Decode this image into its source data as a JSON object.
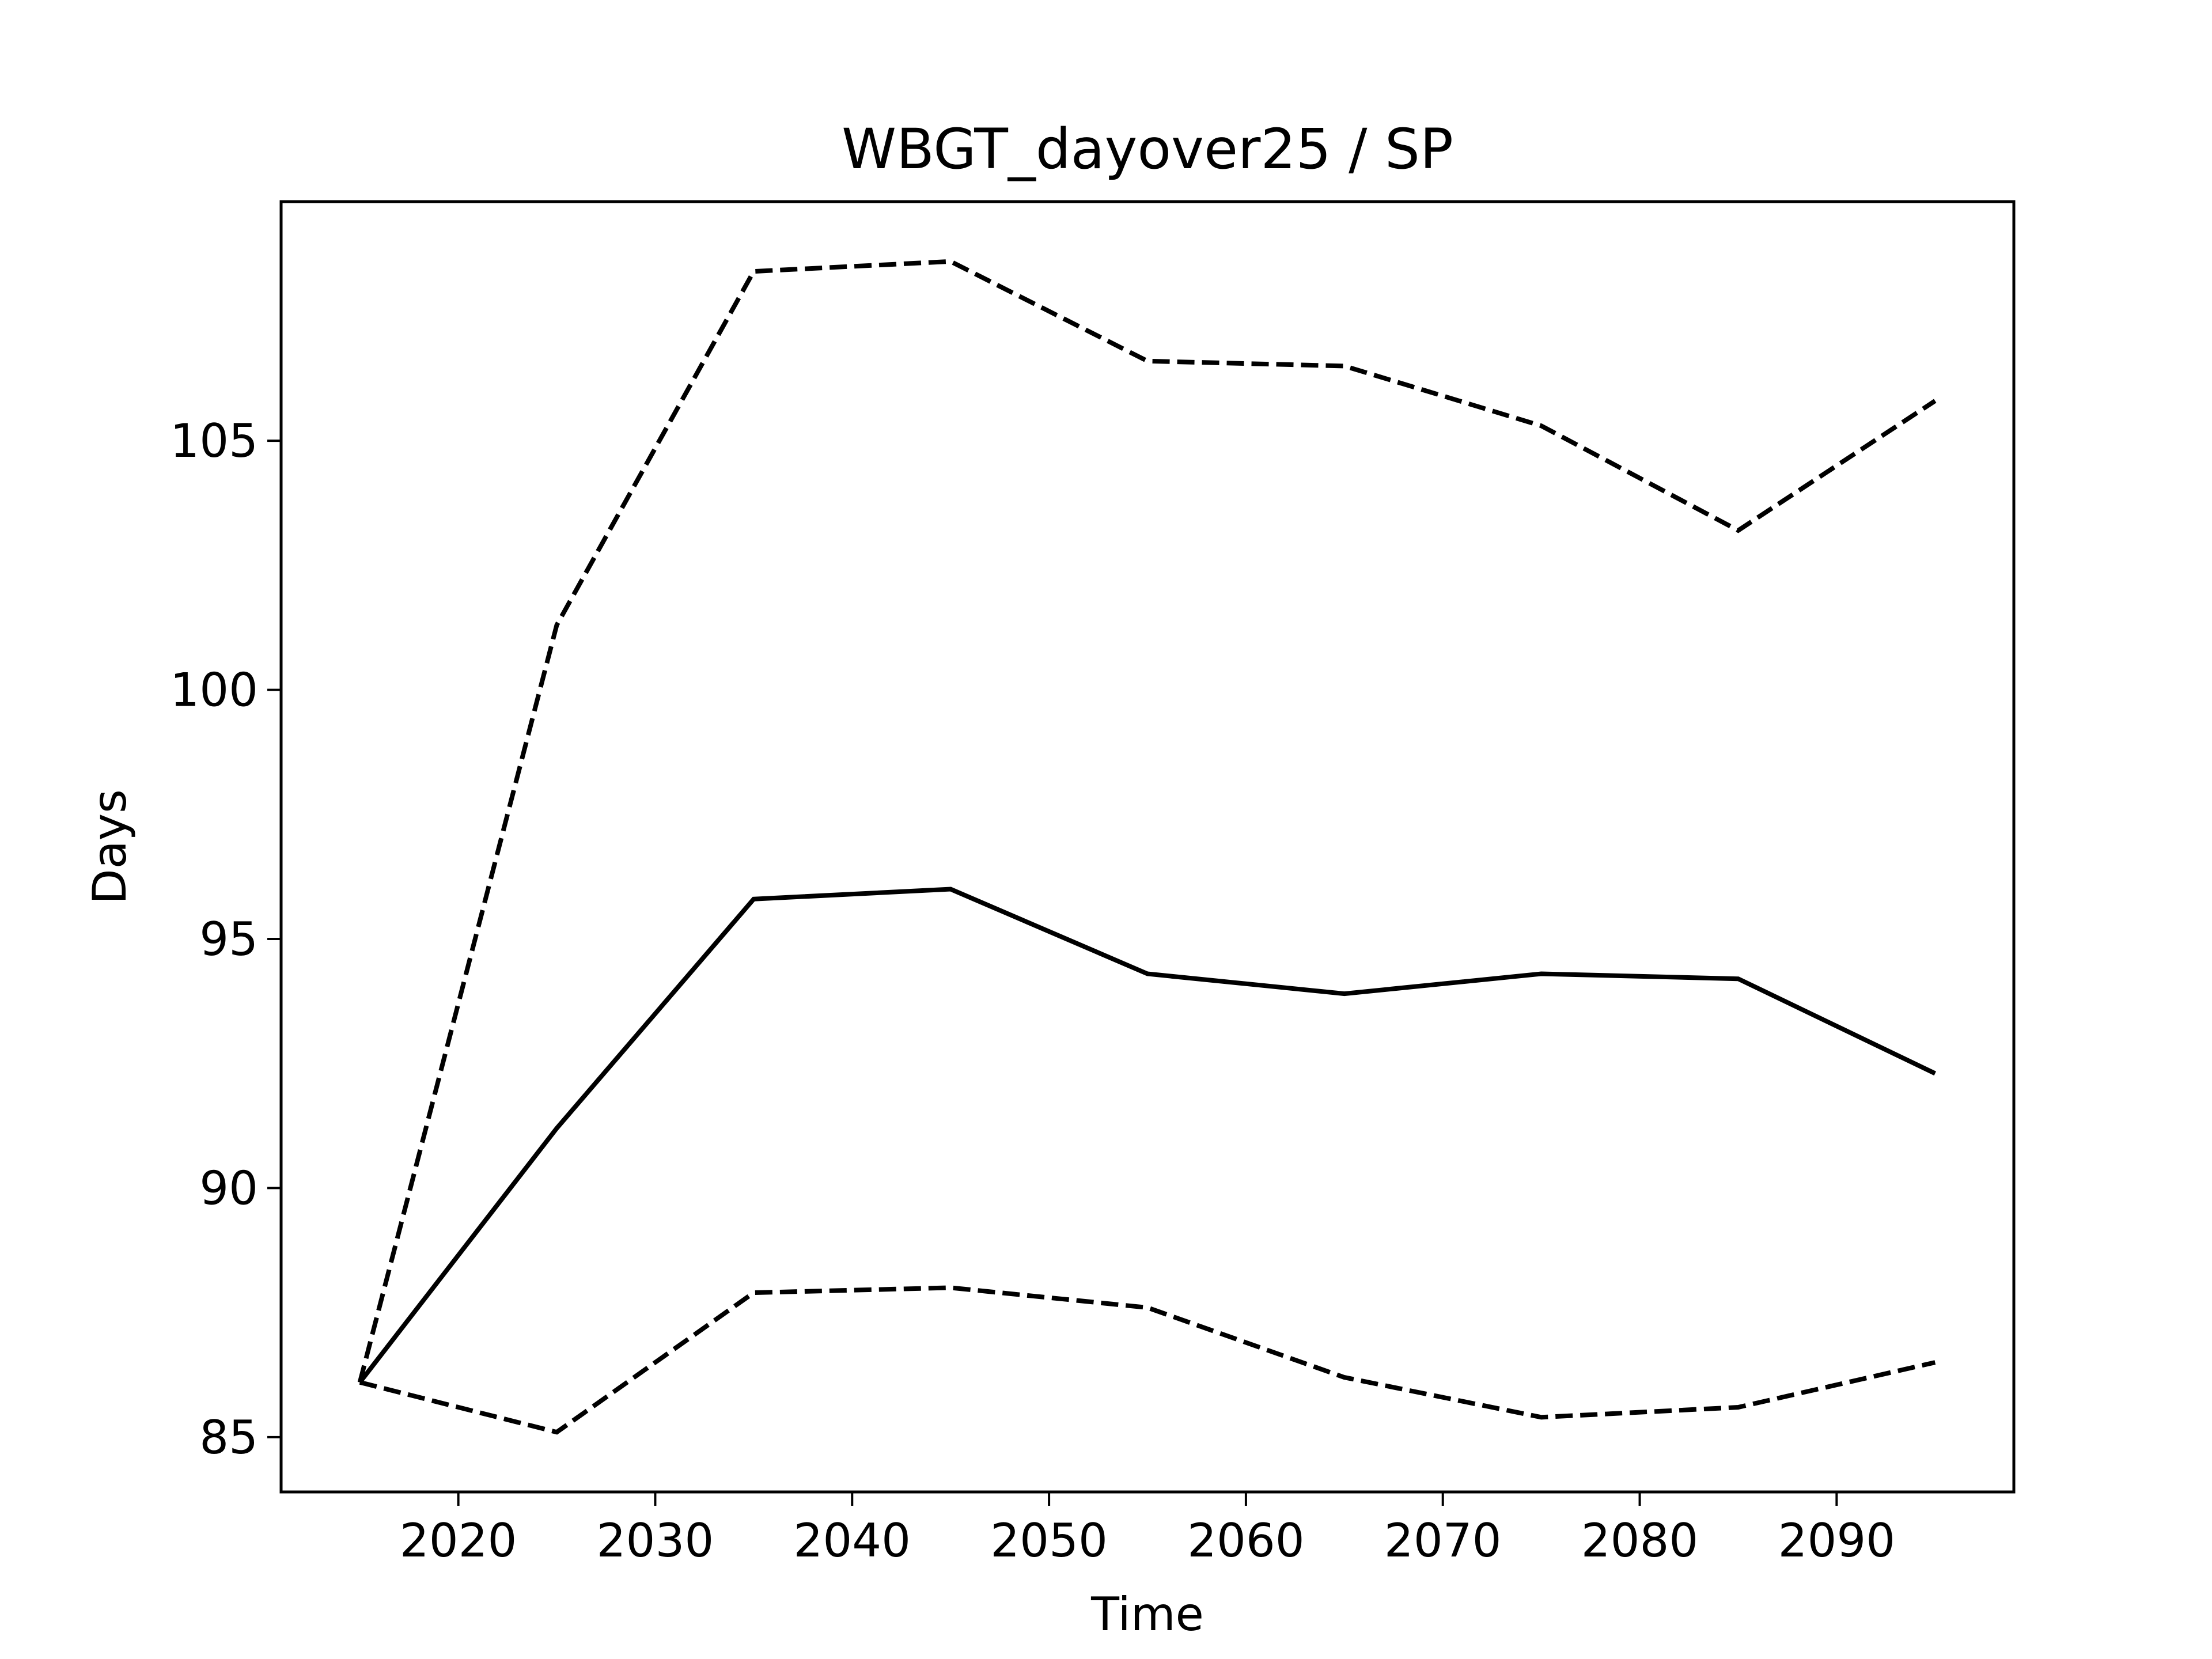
{
  "chart_data": {
    "type": "line",
    "title": "WBGT_dayover25 / SP",
    "xlabel": "Time",
    "ylabel": "Days",
    "xlim": [
      2011,
      2099
    ],
    "ylim": [
      83.9,
      109.8
    ],
    "xticks": [
      2020,
      2030,
      2040,
      2050,
      2060,
      2070,
      2080,
      2090
    ],
    "yticks": [
      85,
      90,
      95,
      100,
      105
    ],
    "grid": false,
    "legend": false,
    "x": [
      2015,
      2025,
      2035,
      2045,
      2055,
      2065,
      2075,
      2085,
      2095
    ],
    "series": [
      {
        "style": "solid",
        "color": "#000000",
        "values": [
          86.1,
          91.2,
          95.8,
          96.0,
          94.3,
          93.9,
          94.3,
          94.2,
          92.3
        ]
      },
      {
        "style": "dashed",
        "color": "#000000",
        "values": [
          86.1,
          101.3,
          108.4,
          108.6,
          106.6,
          106.5,
          105.3,
          103.2,
          105.8
        ]
      },
      {
        "style": "dashed",
        "color": "#000000",
        "values": [
          86.1,
          85.1,
          87.9,
          88.0,
          87.6,
          86.2,
          85.4,
          85.6,
          86.5
        ]
      }
    ]
  }
}
